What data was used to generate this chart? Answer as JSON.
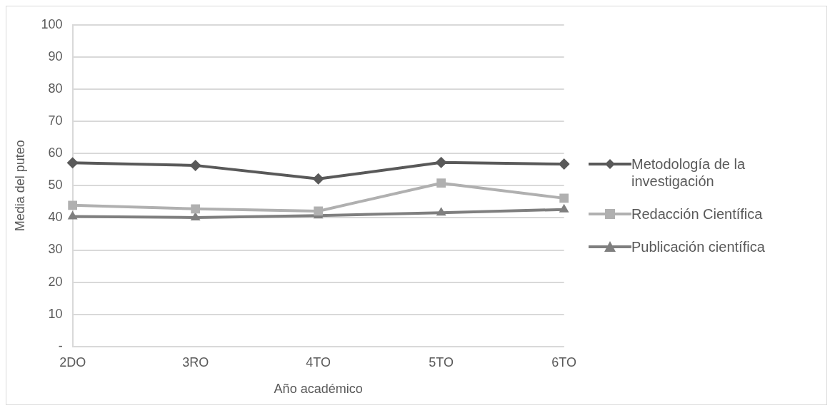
{
  "chart_data": {
    "type": "line",
    "xlabel": "Año académico",
    "ylabel": "Media del puteo",
    "categories": [
      "2DO",
      "3RO",
      "4TO",
      "5TO",
      "6TO"
    ],
    "series": [
      {
        "name": "Metodología de la investigación",
        "color": "#595959",
        "values": [
          57.1,
          56.3,
          52.1,
          57.2,
          56.7
        ],
        "marker": "diamond"
      },
      {
        "name": "Redacción Científica",
        "color": "#b0b0b0",
        "values": [
          43.9,
          42.8,
          42.1,
          50.8,
          46.1
        ],
        "marker": "square"
      },
      {
        "name": "Publicación científica",
        "color": "#7f7f7f",
        "values": [
          40.4,
          40.1,
          40.7,
          41.6,
          42.6
        ],
        "marker": "triangle"
      }
    ],
    "ylim": [
      0,
      100
    ],
    "yticks": [
      {
        "value": 0,
        "label": "-"
      },
      10,
      20,
      30,
      40,
      50,
      60,
      70,
      80,
      90,
      100
    ],
    "grid": "y",
    "legend": "right"
  }
}
